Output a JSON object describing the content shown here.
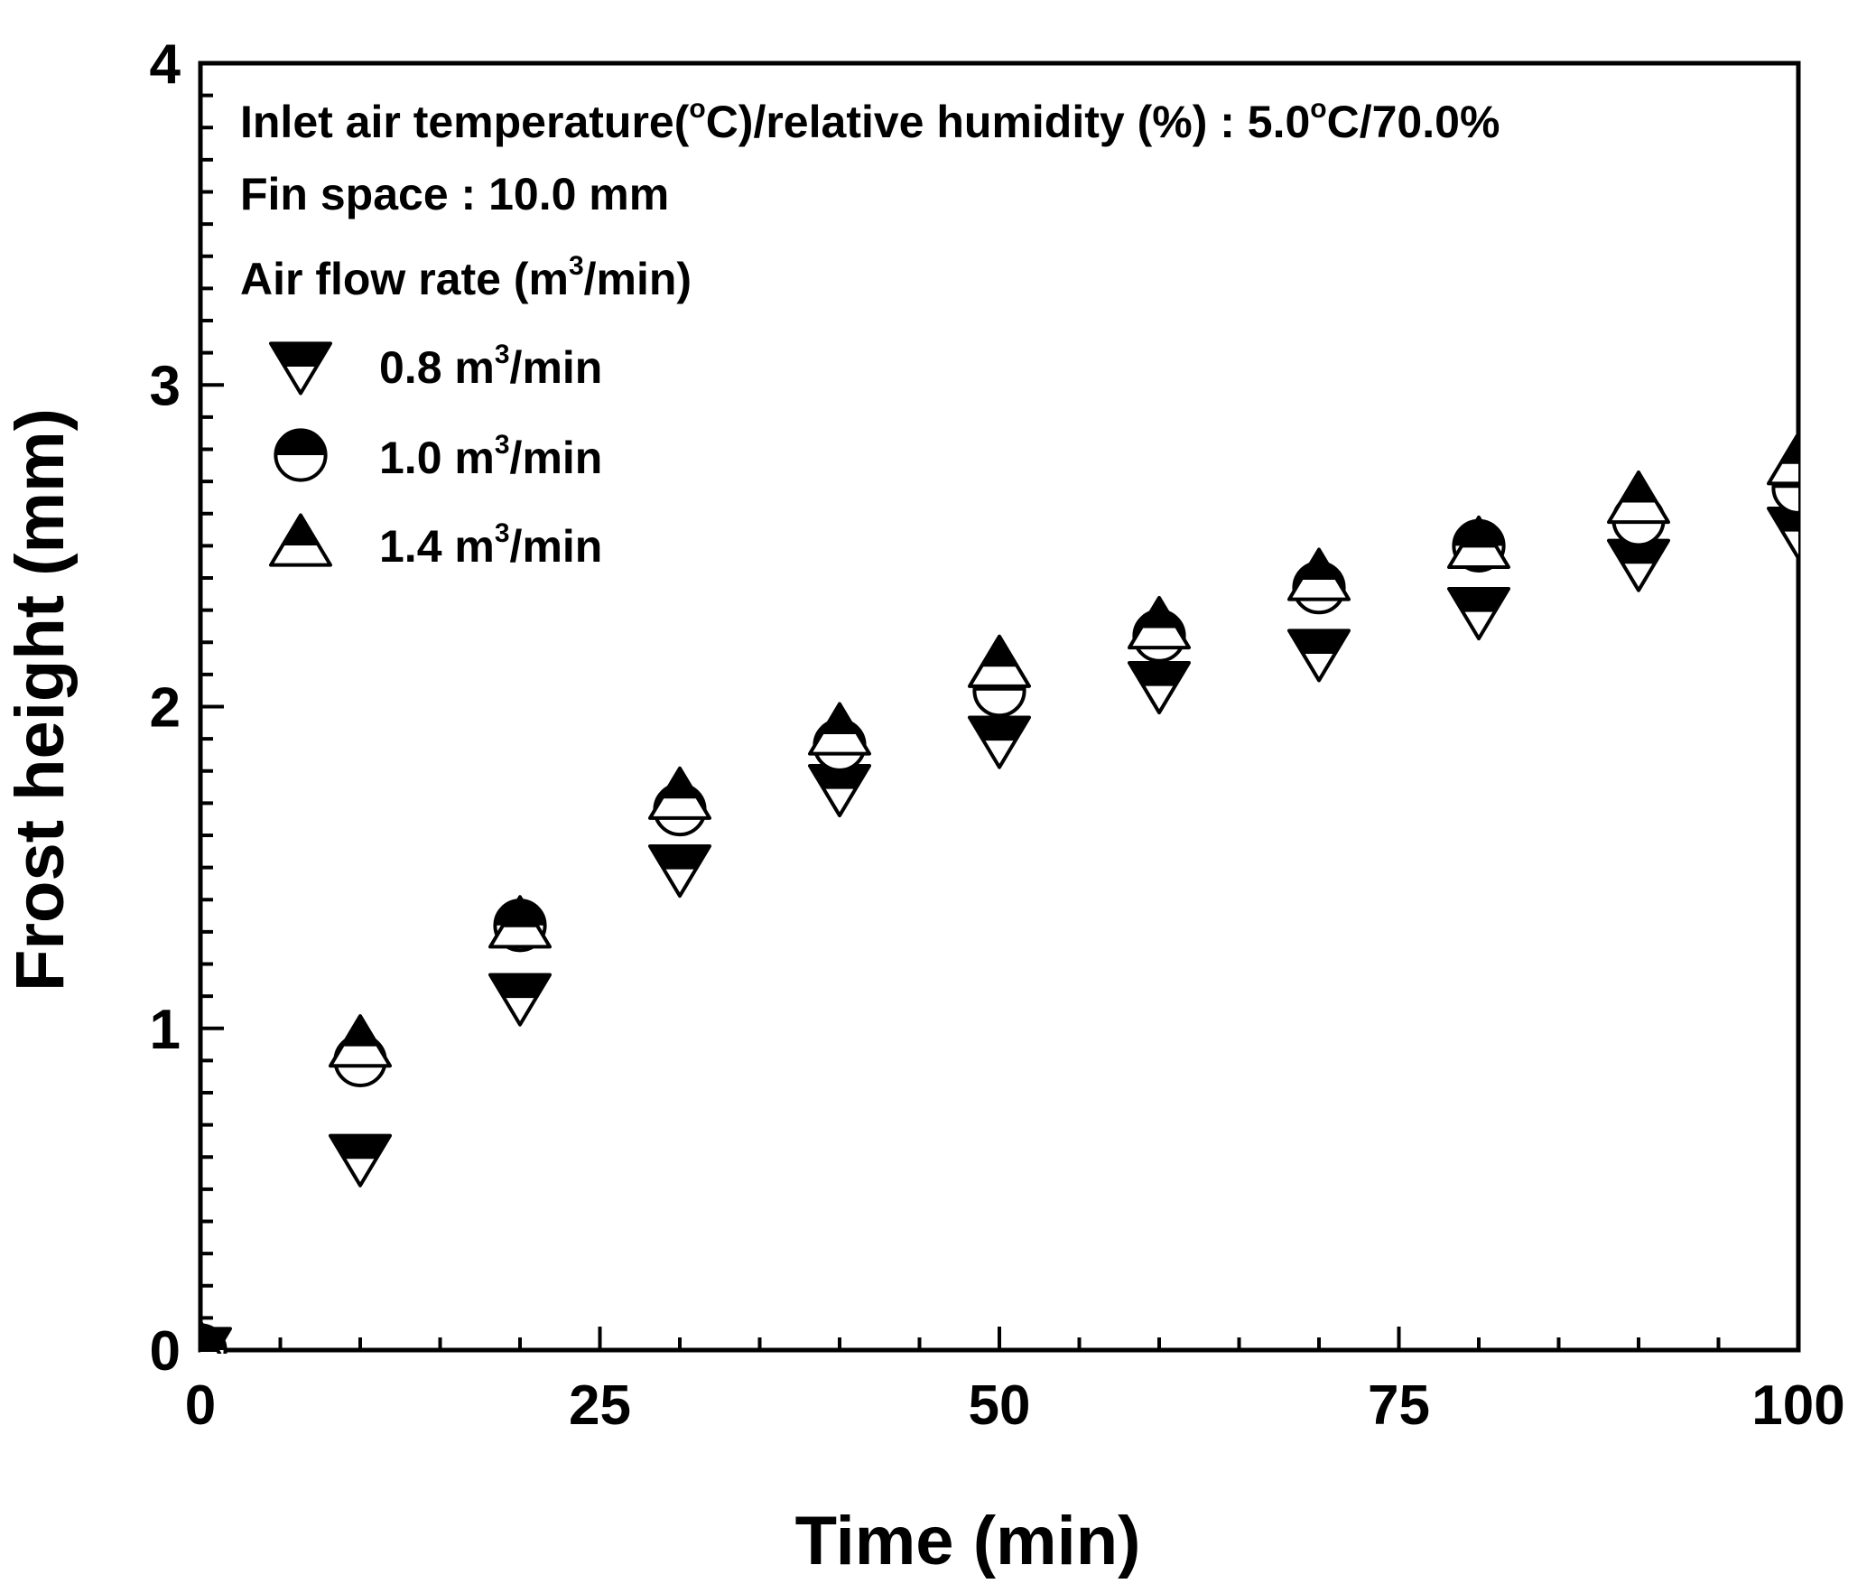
{
  "chart_data": {
    "type": "scatter",
    "xlabel": "Time (min)",
    "ylabel": "Frost height (mm)",
    "xlim": [
      0,
      100
    ],
    "ylim": [
      0,
      4
    ],
    "x_ticks": [
      "0",
      "25",
      "50",
      "75",
      "100"
    ],
    "y_ticks": [
      "0",
      "1",
      "2",
      "3",
      "4"
    ],
    "grid": false,
    "legend_position": "top-left",
    "annotations": {
      "line1_prefix": "Inlet air temperature(",
      "line1_deg1": "o",
      "line1_mid": "C)/relative humidity (%) : 5.0",
      "line1_deg2": "o",
      "line1_suffix": "C/70.0%",
      "line2": "Fin space : 10.0 mm",
      "line3_prefix": "Air flow rate (m",
      "line3_sup": "3",
      "line3_suffix": "/min)"
    },
    "series": [
      {
        "name_main": "0.8 m",
        "name_sup": "3",
        "name_unit": "/min",
        "marker": "down-triangle-half",
        "x": [
          0,
          10,
          20,
          30,
          40,
          50,
          60,
          70,
          80,
          90,
          100
        ],
        "y": [
          0.0,
          0.6,
          1.1,
          1.5,
          1.75,
          1.9,
          2.07,
          2.17,
          2.3,
          2.45,
          2.55
        ]
      },
      {
        "name_main": "1.0 m",
        "name_sup": "3",
        "name_unit": "/min",
        "marker": "circle-half",
        "x": [
          0,
          10,
          20,
          30,
          40,
          50,
          60,
          70,
          80,
          90,
          100
        ],
        "y": [
          0.0,
          0.9,
          1.32,
          1.68,
          1.88,
          2.05,
          2.22,
          2.37,
          2.5,
          2.58,
          2.68
        ]
      },
      {
        "name_main": "1.4 m",
        "name_sup": "3",
        "name_unit": "/min",
        "marker": "up-triangle-half",
        "x": [
          0,
          10,
          20,
          30,
          40,
          50,
          60,
          70,
          80,
          90,
          100
        ],
        "y": [
          0.0,
          0.95,
          1.32,
          1.72,
          1.92,
          2.13,
          2.25,
          2.4,
          2.5,
          2.64,
          2.76
        ]
      }
    ]
  }
}
